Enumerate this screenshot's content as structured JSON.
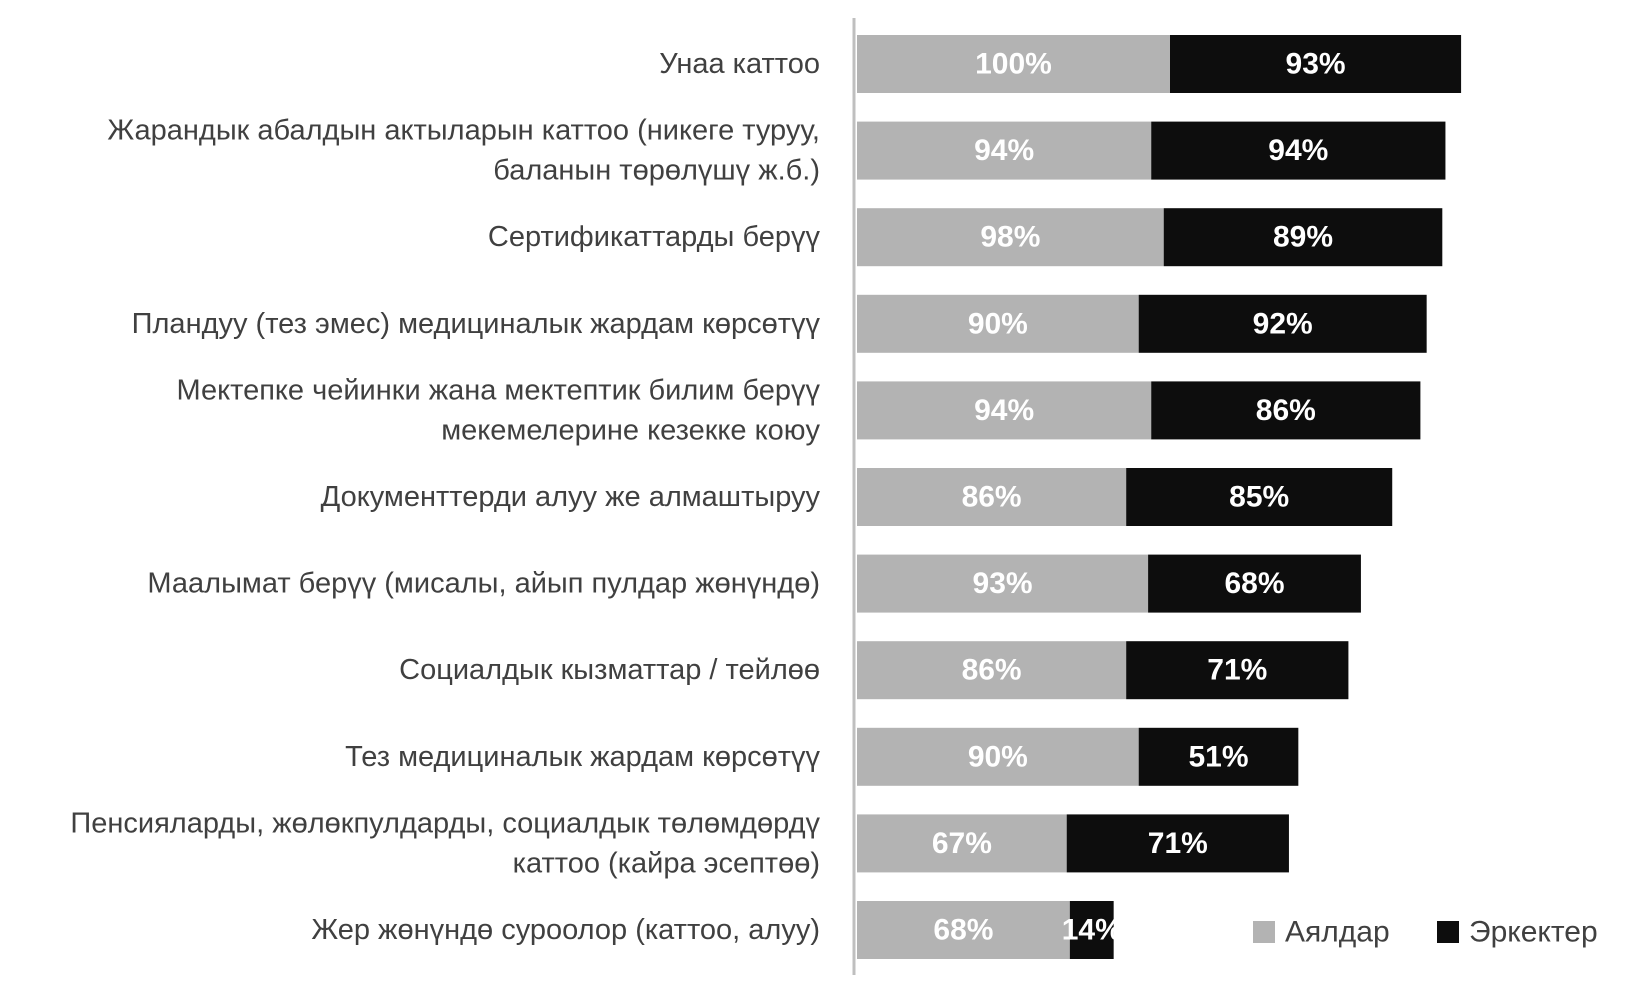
{
  "chart_data": {
    "type": "bar",
    "orientation": "horizontal",
    "stacked": true,
    "categories": [
      [
        "Унаа каттоо"
      ],
      [
        "Жарандык абалдын актыларын каттоо (никеге туруу,",
        "баланын төрөлүшү ж.б.)"
      ],
      [
        "Сертификаттарды берүү"
      ],
      [
        "Пландуу (тез эмес) медициналык жардам көрсөтүү"
      ],
      [
        "Мектепке чейинки жана мектептик билим берүү",
        "мекемелерине кезекке коюу"
      ],
      [
        "Документтерди алуу же алмаштыруу"
      ],
      [
        "Маалымат берүү (мисалы, айып пулдар жөнүндө)"
      ],
      [
        "Социалдык кызматтар / тейлөө"
      ],
      [
        "Тез медициналык жардам көрсөтүү"
      ],
      [
        "Пенсияларды, жөлөкпулдарды, социалдык төлөмдөрдү",
        "каттоо (кайра эсептөө)"
      ],
      [
        "Жер жөнүндө суроолор (каттоо, алуу)"
      ]
    ],
    "series": [
      {
        "name": "Аялдар",
        "color": "#b3b3b3",
        "values": [
          100,
          94,
          98,
          90,
          94,
          86,
          93,
          86,
          90,
          67,
          68
        ]
      },
      {
        "name": "Эркектер",
        "color": "#0d0d0d",
        "values": [
          93,
          94,
          89,
          92,
          86,
          85,
          68,
          71,
          51,
          71,
          14
        ]
      }
    ],
    "value_suffix": "%",
    "xlim": [
      0,
      200
    ],
    "grid": false,
    "legend_position": "bottom-right",
    "title": "",
    "xlabel": "",
    "ylabel": ""
  }
}
